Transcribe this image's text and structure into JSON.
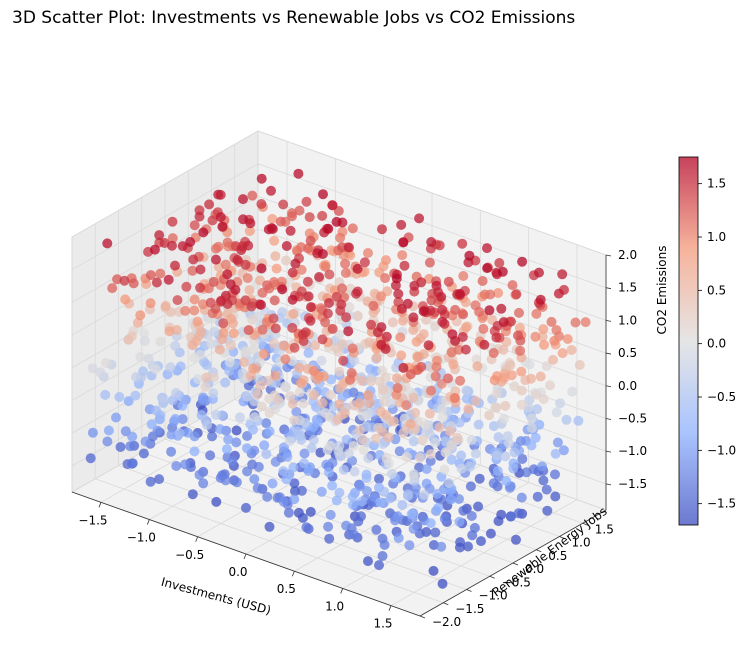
{
  "chart_data": {
    "type": "scatter",
    "title": "3D Scatter Plot: Investments vs Renewable Jobs vs CO2 Emissions",
    "xlabel": "Investments (USD)",
    "ylabel": "Renewable Energy Jobs",
    "zlabel": "CO2 Emissions",
    "xlim": [
      -1.8,
      1.8
    ],
    "ylim": [
      -2.0,
      2.0
    ],
    "zlim": [
      -1.9,
      2.0
    ],
    "x_ticks": [
      "−1.5",
      "−1.0",
      "−0.5",
      "0.0",
      "0.5",
      "1.0",
      "1.5"
    ],
    "y_ticks": [
      "−2.0",
      "−1.5",
      "−1.0",
      "−0.5",
      "0.0",
      "0.5",
      "1.0",
      "1.5"
    ],
    "z_ticks": [
      "−1.5",
      "−1.0",
      "−0.5",
      "0.0",
      "0.5",
      "1.0",
      "1.5",
      "2.0"
    ],
    "colorbar": {
      "colormap": "coolwarm",
      "range": [
        -1.7,
        1.75
      ],
      "ticks": [
        "−1.5",
        "−1.0",
        "−0.5",
        "0.0",
        "0.5",
        "1.0",
        "1.5"
      ]
    },
    "grid": true,
    "colors": {
      "low": "#3b4cc0",
      "mid": "#dddddd",
      "high": "#b40426",
      "pane": "#f2f2f2"
    }
  }
}
